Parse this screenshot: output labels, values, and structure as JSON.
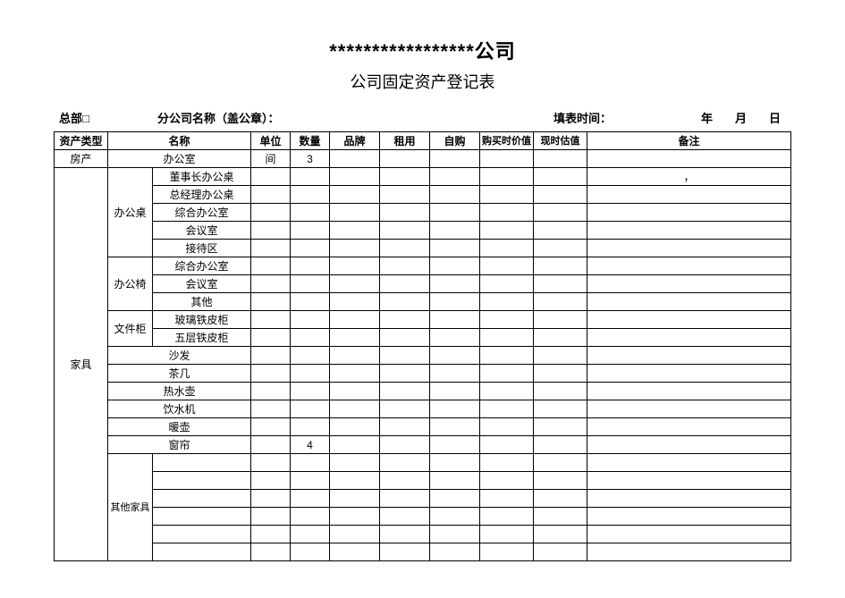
{
  "title_main": "*****************公司",
  "title_sub": "公司固定资产登记表",
  "meta": {
    "hq_label": "总部□",
    "branch_label": "分公司名称（盖公章）：",
    "fill_time_label": "填表时间：",
    "date_fields": "年　月　日"
  },
  "columns": {
    "cat": "资产类型",
    "name": "名称",
    "unit": "单位",
    "qty": "数量",
    "brand": "品牌",
    "rent": "租用",
    "self": "自购",
    "pprice": "购买时价值",
    "cval": "现时估值",
    "note": "备注"
  },
  "rows": {
    "property": {
      "cat": "房产",
      "name": "办公室",
      "unit": "间",
      "qty": "3",
      "note": ""
    },
    "furniture_cat": "家具",
    "desk_group": "办公桌",
    "desk_items": [
      "董事长办公桌",
      "总经理办公桌",
      "综合办公室",
      "会议室",
      "接待区"
    ],
    "desk_note_first": "，",
    "chair_group": "办公椅",
    "chair_items": [
      "综合办公室",
      "会议室",
      "其他"
    ],
    "cabinet_group": "文件柜",
    "cabinet_items": [
      "玻璃铁皮柜",
      "五层铁皮柜"
    ],
    "singles": [
      "沙发",
      "茶几",
      "热水壶",
      "饮水机",
      "暖壶"
    ],
    "curtain": {
      "name": "窗帘",
      "qty": "4"
    },
    "other_group": "其他家具",
    "other_count": 6
  },
  "style": {
    "border_color": "#000000",
    "bg": "#ffffff",
    "title_fontsize": 22,
    "subtitle_fontsize": 18,
    "cell_fontsize": 12
  }
}
